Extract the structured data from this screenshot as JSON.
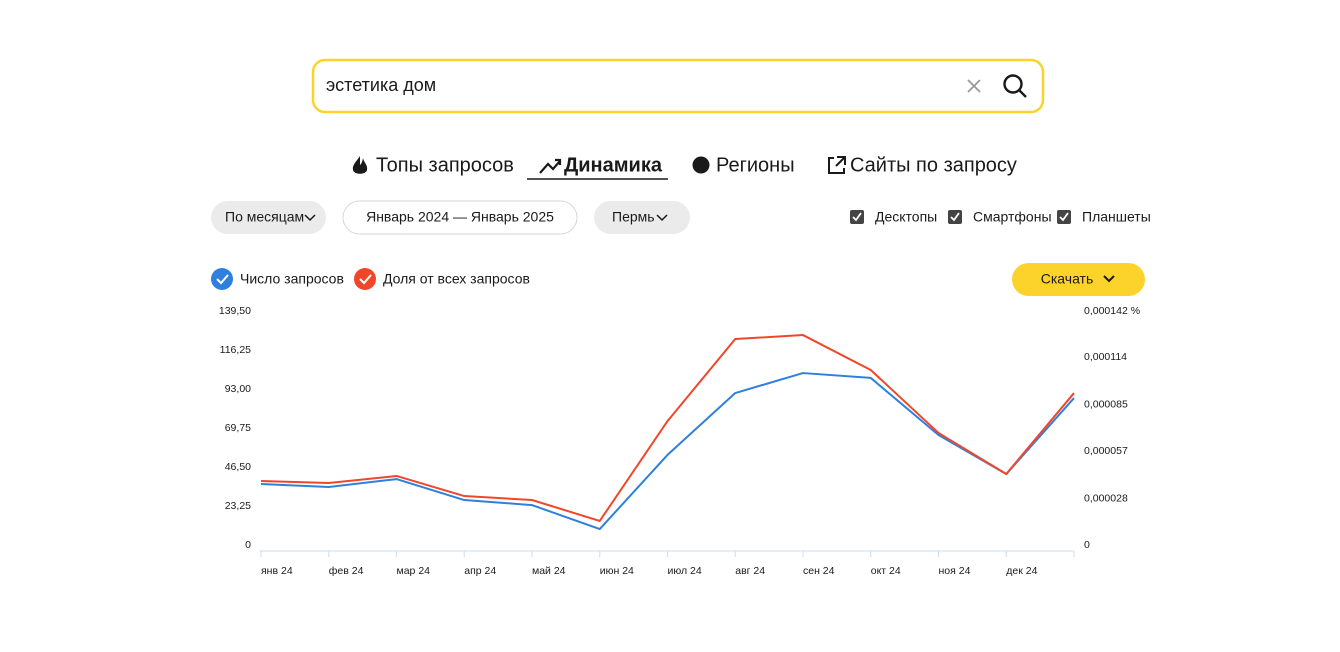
{
  "search": {
    "query": "эстетика дом"
  },
  "tabs": [
    "Топы запросов",
    "Динамика",
    "Регионы",
    "Сайты по запросу"
  ],
  "filters": {
    "period": "По месяцам",
    "range": "Январь 2024 — Январь 2025",
    "region": "Пермь"
  },
  "devices": [
    "Десктопы",
    "Смартфоны",
    "Планшеты"
  ],
  "download": "Скачать",
  "chart_data": {
    "type": "line",
    "categories": [
      "янв 24",
      "фев 24",
      "мар 24",
      "апр 24",
      "май 24",
      "июн 24",
      "июл 24",
      "авг 24",
      "сен 24",
      "окт 24",
      "ноя 24",
      "дек 24",
      null
    ],
    "series": [
      {
        "name": "Число запросов",
        "color": "#2f80dc",
        "values": [
          36.4,
          34.6,
          39.3,
          26.8,
          23.8,
          9.5,
          53.7,
          90.6,
          102.5,
          99.6,
          65.6,
          42.3,
          87.6
        ]
      },
      {
        "name": "Доля от всех запросов",
        "color": "#f0462a",
        "axis": "y2",
        "values": [
          3.88e-05,
          3.76e-05,
          4.19e-05,
          2.97e-05,
          2.73e-05,
          1.46e-05,
          7.52e-05,
          0.000125,
          0.0001274,
          0.0001062,
          6.8e-05,
          4.31e-05,
          9.22e-05
        ]
      }
    ],
    "ylim": [
      0,
      139.5
    ],
    "yticks": [
      0,
      {
        "value": 23.25,
        "label": "23,25"
      },
      {
        "value": 46.5,
        "label": "46,50"
      },
      {
        "value": 69.75,
        "label": "69,75"
      },
      {
        "value": 93,
        "label": "93,00"
      },
      {
        "value": 116.25,
        "label": "116,25"
      },
      {
        "value": 139.5,
        "label": "139,50"
      }
    ],
    "y2lim": [
      0,
      0.000142
    ],
    "y2ticks": [
      0,
      {
        "value": 2.8e-05,
        "label": "0,000028"
      },
      {
        "value": 5.7e-05,
        "label": "0,000057"
      },
      {
        "value": 8.5e-05,
        "label": "0,000085"
      },
      {
        "value": 0.000114,
        "label": "0,000114"
      },
      {
        "value": 0.000142,
        "label": "0,000142 %"
      }
    ],
    "grid": false
  }
}
